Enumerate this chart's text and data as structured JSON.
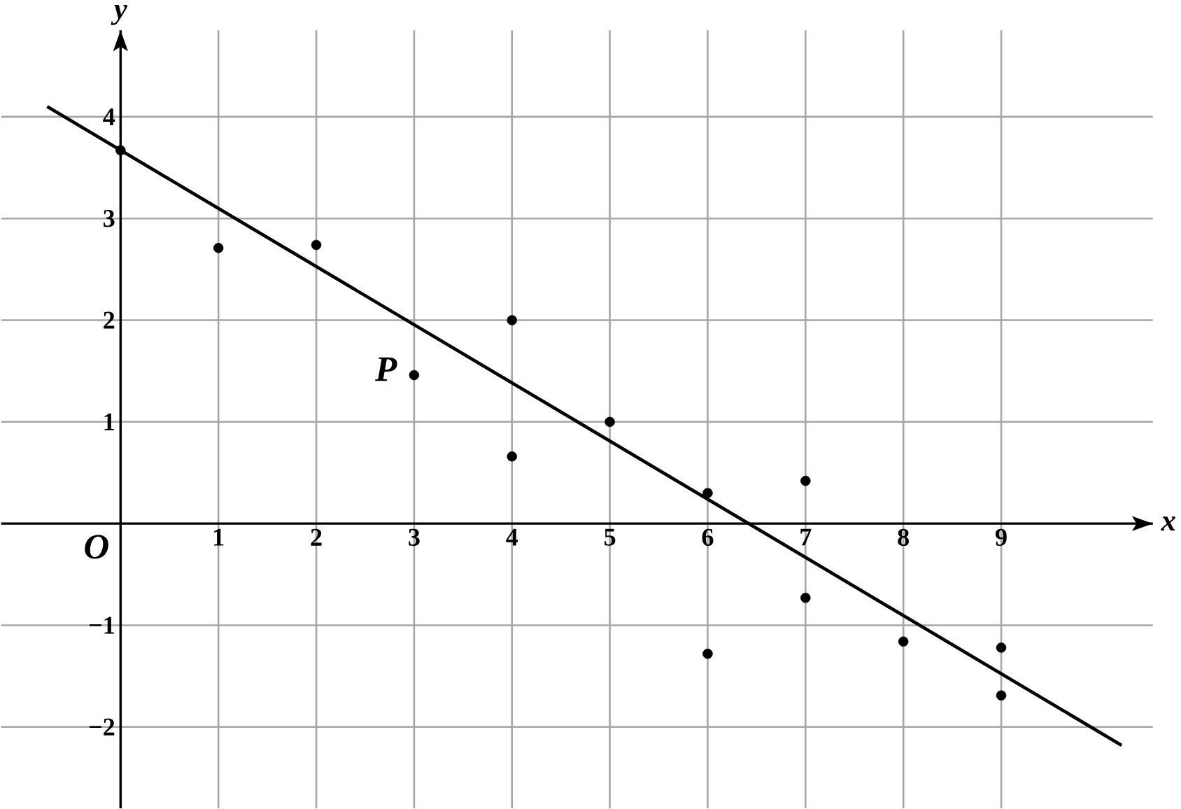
{
  "chart_data": {
    "type": "scatter",
    "xlabel": "x",
    "ylabel": "y",
    "xlim": [
      -1.22,
      10.55
    ],
    "ylim": [
      -2.8,
      4.85
    ],
    "xticks": [
      1,
      2,
      3,
      4,
      5,
      6,
      7,
      8,
      9
    ],
    "yticks": [
      {
        "value": -2,
        "label": "−2"
      },
      {
        "value": -1,
        "label": "−1"
      },
      1,
      2,
      3,
      4
    ],
    "grid": true,
    "series": [
      {
        "color": "#000000",
        "x": [
          0,
          1,
          2,
          3,
          4,
          4,
          5,
          6,
          6,
          7,
          7,
          8,
          9,
          9
        ],
        "values": [
          3.67,
          2.71,
          2.74,
          1.46,
          2.0,
          0.66,
          1.0,
          0.3,
          -1.28,
          0.42,
          -0.73,
          -1.16,
          -1.22,
          -1.69
        ]
      },
      {
        "type": "line",
        "color": "#000000",
        "x": [
          -0.75,
          10.23
        ],
        "values": [
          4.1,
          -2.18
        ]
      }
    ],
    "annotations": [
      {
        "text": "P",
        "x": 3,
        "y": 1.46
      },
      "O"
    ]
  }
}
